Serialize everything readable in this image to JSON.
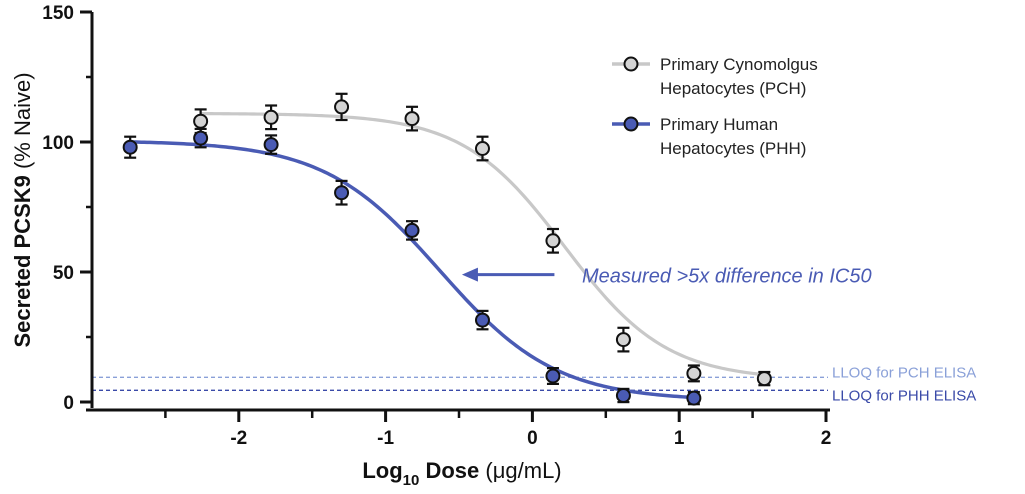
{
  "chart_data": {
    "type": "scatter",
    "xlabel": {
      "prefix": "Log",
      "sub": "10",
      "bold": " Dose",
      "unit": " (μg/mL)"
    },
    "ylabel": {
      "bold": "Secreted PCSK9",
      "unit": " (% Naive)"
    },
    "xlim": [
      -3.0,
      2.0
    ],
    "ylim": [
      0,
      150
    ],
    "xticks": [
      -2,
      -1,
      0,
      1,
      2
    ],
    "yticks": [
      0,
      50,
      100,
      150
    ],
    "xtick_labels": [
      "-2",
      "-1",
      "0",
      "1",
      "2"
    ],
    "ytick_labels": [
      "0",
      "50",
      "100",
      "150"
    ],
    "legend_position": "top-right",
    "series": [
      {
        "name_lines": [
          "Primary Cynomolgus",
          "Hepatocytes (PCH)"
        ],
        "marker_color": "#d4d4d4",
        "line_color": "#c8c8c8",
        "x": [
          -2.26,
          -1.78,
          -1.3,
          -0.82,
          -0.34,
          0.14,
          0.62,
          1.1,
          1.58
        ],
        "y": [
          108,
          109.5,
          113.5,
          109,
          97.5,
          62,
          24,
          11,
          9
        ],
        "err": [
          3,
          3,
          3.5,
          3,
          3,
          3,
          3,
          1.5,
          1
        ],
        "fit": {
          "top": 111,
          "bottom": 8.5,
          "logIC50": 0.22,
          "hill": 1.25
        }
      },
      {
        "name_lines": [
          "Primary Human",
          "Hepatocytes (PHH)"
        ],
        "marker_color": "#4a5bb4",
        "line_color": "#4a5bb4",
        "x": [
          -2.74,
          -2.26,
          -1.78,
          -1.3,
          -0.82,
          -0.34,
          0.14,
          0.62,
          1.1
        ],
        "y": [
          98,
          101.5,
          99,
          80.5,
          66,
          31.5,
          10,
          2.5,
          1.5
        ],
        "err": [
          2.5,
          2,
          2,
          3,
          2,
          2,
          1.5,
          1,
          0.8
        ],
        "fit": {
          "top": 100.5,
          "bottom": 0.5,
          "logIC50": -0.63,
          "hill": 1.1
        }
      }
    ],
    "reference_lines": [
      {
        "label": "LLOQ for PCH ELISA",
        "y": 9.5,
        "color": "#8aa0d8"
      },
      {
        "label": "LLOQ for PHH ELISA",
        "y": 4.5,
        "color": "#3a4aa8"
      }
    ],
    "annotation": {
      "text": "Measured >5x difference in IC50",
      "color": "#4a5bb4",
      "arrow_from_x": 0.15,
      "arrow_to_x": -0.48,
      "y": 49
    }
  }
}
